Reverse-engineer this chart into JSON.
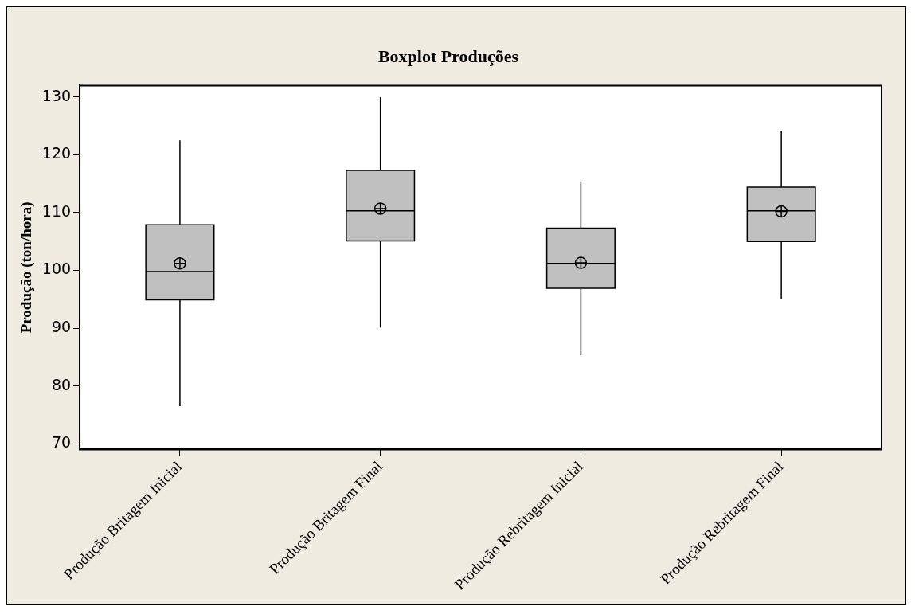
{
  "chart_data": {
    "type": "box",
    "title": "Boxplot Produções",
    "ylabel": "Produção (ton/hora)",
    "categories": [
      "Produção Britagem Inicial",
      "Produção Britagem Final",
      "Produção Rebritagem Inicial",
      "Produção Rebritagem Final"
    ],
    "color": "#c0c0c0",
    "boxes": [
      {
        "low": 76.5,
        "q1": 94.9,
        "median": 99.8,
        "q3": 107.9,
        "high": 122.5,
        "mean": 101.2
      },
      {
        "low": 90.1,
        "q1": 105.1,
        "median": 110.3,
        "q3": 117.3,
        "high": 130,
        "mean": 110.7
      },
      {
        "low": 85.3,
        "q1": 96.9,
        "median": 101.2,
        "q3": 107.3,
        "high": 115.4,
        "mean": 101.3
      },
      {
        "low": 95,
        "q1": 105,
        "median": 110.3,
        "q3": 114.4,
        "high": 124.1,
        "mean": 110.2
      }
    ],
    "ylim": [
      69,
      132
    ],
    "yticks": [
      70,
      80,
      90,
      100,
      110,
      120,
      130
    ],
    "grid": false,
    "legend": false
  }
}
